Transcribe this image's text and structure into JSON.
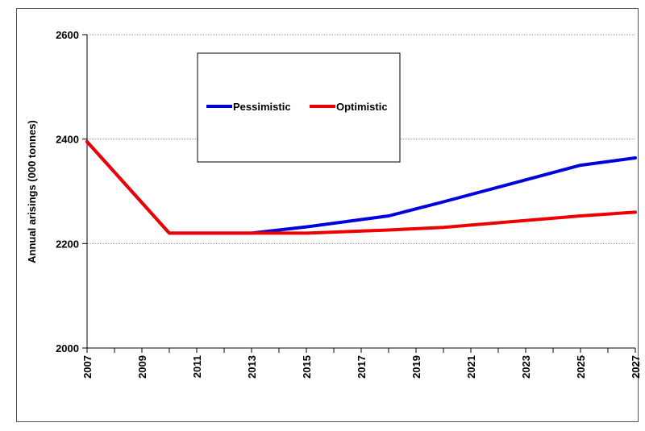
{
  "chart_data": {
    "type": "line",
    "xlabel": "",
    "ylabel": "Annual arisings (000 tonnes)",
    "x": [
      2007,
      2010,
      2013,
      2015,
      2018,
      2020,
      2025,
      2027
    ],
    "series": [
      {
        "name": "Pessimistic",
        "color": "#0000dd",
        "values": [
          2395,
          2220,
          2220,
          2232,
          2253,
          2280,
          2350,
          2364
        ]
      },
      {
        "name": "Optimistic",
        "color": "#ee0000",
        "values": [
          2395,
          2220,
          2220,
          2220,
          2226,
          2231,
          2253,
          2260
        ]
      }
    ],
    "xlim": [
      2007,
      2027
    ],
    "ylim": [
      2000,
      2600
    ],
    "yticks": [
      2000,
      2200,
      2400,
      2600
    ],
    "xtick_labels": [
      "2007",
      "2009",
      "2011",
      "2013",
      "2015",
      "2017",
      "2019",
      "2021",
      "2023",
      "2025",
      "2027"
    ],
    "grid": {
      "horizontal": true,
      "vertical": false
    },
    "legend": {
      "placement": "top-center, boxed"
    }
  }
}
